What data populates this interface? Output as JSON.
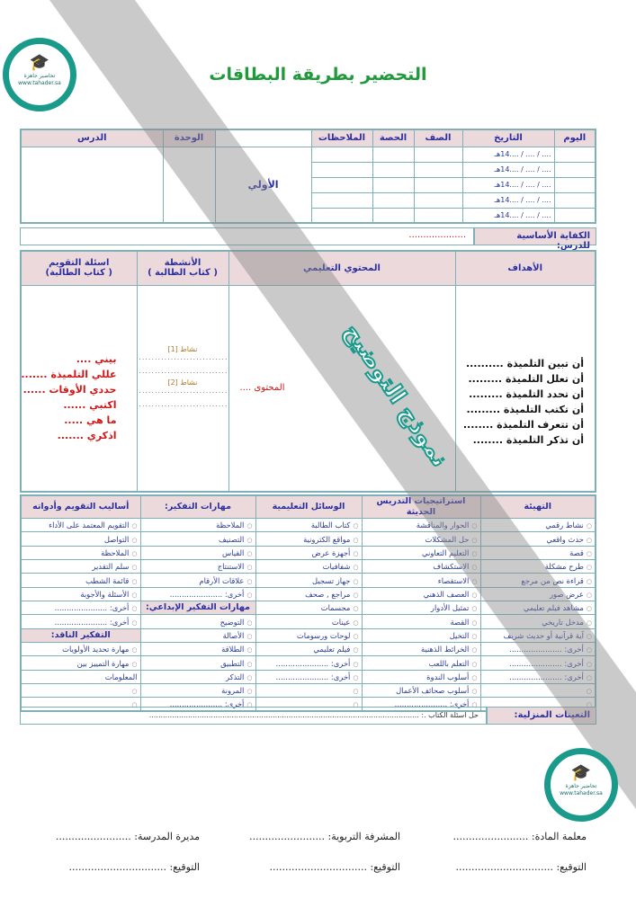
{
  "title": "التحضير بطريقة البطاقات",
  "header_table": {
    "columns": {
      "day": "اليوم",
      "date": "التاريخ",
      "class": "الصف",
      "period": "الحصة",
      "notes": "الملاحظات",
      "unit": "الوحدة",
      "lesson": "الدرس"
    },
    "date_placeholder": ".... / .... / ....14هـ",
    "unit_value": "الأولي"
  },
  "competency": {
    "label": "الكفاية الأساسية للدرس:",
    "value": "...................."
  },
  "plan_table": {
    "goals_header": "الأهداف",
    "content_header": "المحتوي التعليمي",
    "activities_header": "الأنشطة",
    "activities_sub": "( كتاب الطالبة )",
    "eval_header": "اسئلة التقويم",
    "eval_sub": "( كتاب الطالبة)",
    "goals": [
      "أن تبين التلميذة ..........",
      "أن تعلل التلميذة .........",
      "أن تحدد التلميذة .........",
      "أن تكتب التلميذة .........",
      "أن تتعرف التلميذة ........",
      "أن تذكر التلميذة ........"
    ],
    "content_value": "المحتوى ....",
    "activities": [
      "نشاط [1]",
      "نشاط [2]"
    ],
    "dots": "..............................",
    "eval_questions": [
      "بيني ....",
      "عللي التلميذة .......",
      "حددي الأوقات ......",
      "اكتبي ......",
      "ما هي .....",
      "اذكري ......."
    ]
  },
  "methods_table": {
    "headers": [
      "التهيئة",
      "استراتيجيات التدريس الحديثة",
      "الوسائل التعليمية",
      "مهارات التفكير:",
      "أساليب التقويم وأدواته"
    ],
    "columns": [
      [
        {
          "t": "نشاط رقمي"
        },
        {
          "t": "حدث واقعي"
        },
        {
          "t": "قصة"
        },
        {
          "t": "طرح مشكلة"
        },
        {
          "t": "قراءة نص من مرجع"
        },
        {
          "t": "عرض صور"
        },
        {
          "t": "مشاهد فيلم تعليمي"
        },
        {
          "t": "مدخل تاريخي"
        },
        {
          "t": "آية قرآنية أو حديث شريف"
        },
        {
          "t": "أخرى: ......................"
        },
        {
          "t": "أخرى: ......................"
        },
        {
          "t": "أخرى: ......................"
        },
        {
          "t": ""
        },
        {
          "t": ""
        }
      ],
      [
        {
          "t": "الحوار والمناقشة"
        },
        {
          "t": "حل المشكلات"
        },
        {
          "t": "التعليم التعاوني"
        },
        {
          "t": "الاستكشاف"
        },
        {
          "t": "الاستقصاء"
        },
        {
          "t": "العصف الذهني"
        },
        {
          "t": "تمثيل الأدوار"
        },
        {
          "t": "القصة"
        },
        {
          "t": "التخيل"
        },
        {
          "t": "الخرائط الذهنية"
        },
        {
          "t": "التعلم باللعب"
        },
        {
          "t": "أسلوب الندوة"
        },
        {
          "t": "أسلوب صحائف الأعمال"
        },
        {
          "t": "أخرى: ......................"
        }
      ],
      [
        {
          "t": "كتاب الطالبة"
        },
        {
          "t": "مواقع الكترونية"
        },
        {
          "t": "أجهزة عرض"
        },
        {
          "t": "شفافيات"
        },
        {
          "t": "جهاز تسجيل"
        },
        {
          "t": "مراجع , صحف"
        },
        {
          "t": "مجسمات"
        },
        {
          "t": "عينات"
        },
        {
          "t": "لوحات ورسومات"
        },
        {
          "t": "فيلم تعليمي"
        },
        {
          "t": "أخرى: ......................"
        },
        {
          "t": "أخرى: ......................"
        },
        {
          "t": ""
        },
        {
          "t": ""
        }
      ],
      [
        {
          "t": "الملاحظة"
        },
        {
          "t": "التصنيف"
        },
        {
          "t": "القياس"
        },
        {
          "t": "الاستنتاج"
        },
        {
          "t": "علاقات الأرقام"
        },
        {
          "t": "أخرى: ......................"
        },
        {
          "t": "مهارات التفكير الإبداعي:",
          "h": true
        },
        {
          "t": "التوضيح"
        },
        {
          "t": "الأصالة"
        },
        {
          "t": "الطلاقة"
        },
        {
          "t": "التطبيق"
        },
        {
          "t": "التذكر"
        },
        {
          "t": "المرونة"
        },
        {
          "t": "أخرى: ......................"
        }
      ],
      [
        {
          "t": "التقويم المعتمد على الأداء"
        },
        {
          "t": "التواصل"
        },
        {
          "t": "الملاحظة"
        },
        {
          "t": "سلم التقدير"
        },
        {
          "t": "قائمة الشطب"
        },
        {
          "t": "الأسئلة والأجوبة"
        },
        {
          "t": "أخرى: ......................"
        },
        {
          "t": "أخرى: ......................"
        },
        {
          "t": "التفكير الناقد:",
          "h": true
        },
        {
          "t": "مهارة تحديد الأولويات"
        },
        {
          "t": "مهارة التمييز بين"
        },
        {
          "t": "المعلومات",
          "nb": true
        },
        {
          "t": ""
        },
        {
          "t": ""
        }
      ]
    ]
  },
  "homework": {
    "label": "التعينات المنزلية:",
    "value": "حل اسئلة الكتاب .: ......................................................................................................................"
  },
  "footer": {
    "teacher": "معلمة المادة: ........................",
    "supervisor": "المشرفة التربوية: ........................",
    "principal": "مديرة المدرسة: ........................",
    "sign": "التوقيع: ..............................."
  },
  "watermark": {
    "text": "نموذج التوضيح",
    "logo_text": "تحاضير جاهزة",
    "logo_url": "www.tahader.sa"
  },
  "colors": {
    "title": "#1f9a3a",
    "header_bg": "#ecd9db",
    "border": "#7fb0b8",
    "header_text": "#2b2fa0",
    "red": "#d01818",
    "logo": "#1a9a8a"
  }
}
